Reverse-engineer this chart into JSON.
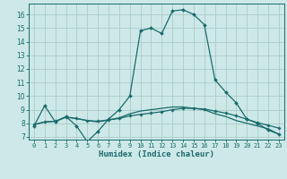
{
  "xlabel": "Humidex (Indice chaleur)",
  "xlim": [
    -0.5,
    23.5
  ],
  "ylim": [
    6.8,
    16.8
  ],
  "yticks": [
    7,
    8,
    9,
    10,
    11,
    12,
    13,
    14,
    15,
    16
  ],
  "xticks": [
    0,
    1,
    2,
    3,
    4,
    5,
    6,
    7,
    8,
    9,
    10,
    11,
    12,
    13,
    14,
    15,
    16,
    17,
    18,
    19,
    20,
    21,
    22,
    23
  ],
  "background_color": "#cde8e8",
  "grid_color": "#aacccc",
  "line_color": "#1a6b6b",
  "line1_x": [
    0,
    1,
    2,
    3,
    4,
    5,
    6,
    7,
    8,
    9,
    10,
    11,
    12,
    13,
    14,
    15,
    16,
    17,
    18,
    19,
    20,
    21,
    22,
    23
  ],
  "line1_y": [
    7.8,
    9.3,
    8.1,
    8.5,
    7.8,
    6.65,
    7.4,
    8.3,
    9.0,
    10.0,
    14.8,
    15.0,
    14.6,
    16.25,
    16.35,
    16.0,
    15.25,
    11.2,
    10.3,
    9.5,
    8.3,
    8.0,
    7.5,
    7.2
  ],
  "line2_x": [
    0,
    1,
    2,
    3,
    4,
    5,
    6,
    7,
    8,
    9,
    10,
    11,
    12,
    13,
    14,
    15,
    16,
    17,
    18,
    19,
    20,
    21,
    22,
    23
  ],
  "line2_y": [
    7.9,
    8.1,
    8.15,
    8.45,
    8.35,
    8.2,
    8.15,
    8.25,
    8.35,
    8.55,
    8.65,
    8.75,
    8.85,
    9.0,
    9.1,
    9.1,
    9.05,
    8.9,
    8.75,
    8.55,
    8.3,
    8.05,
    7.85,
    7.65
  ],
  "line3_x": [
    0,
    1,
    2,
    3,
    4,
    5,
    6,
    7,
    8,
    9,
    10,
    11,
    12,
    13,
    14,
    15,
    16,
    17,
    18,
    19,
    20,
    21,
    22,
    23
  ],
  "line3_y": [
    7.9,
    8.1,
    8.15,
    8.45,
    8.35,
    8.2,
    8.1,
    8.25,
    8.4,
    8.7,
    8.9,
    9.0,
    9.1,
    9.2,
    9.2,
    9.1,
    9.0,
    8.7,
    8.5,
    8.2,
    8.0,
    7.8,
    7.6,
    7.2
  ]
}
